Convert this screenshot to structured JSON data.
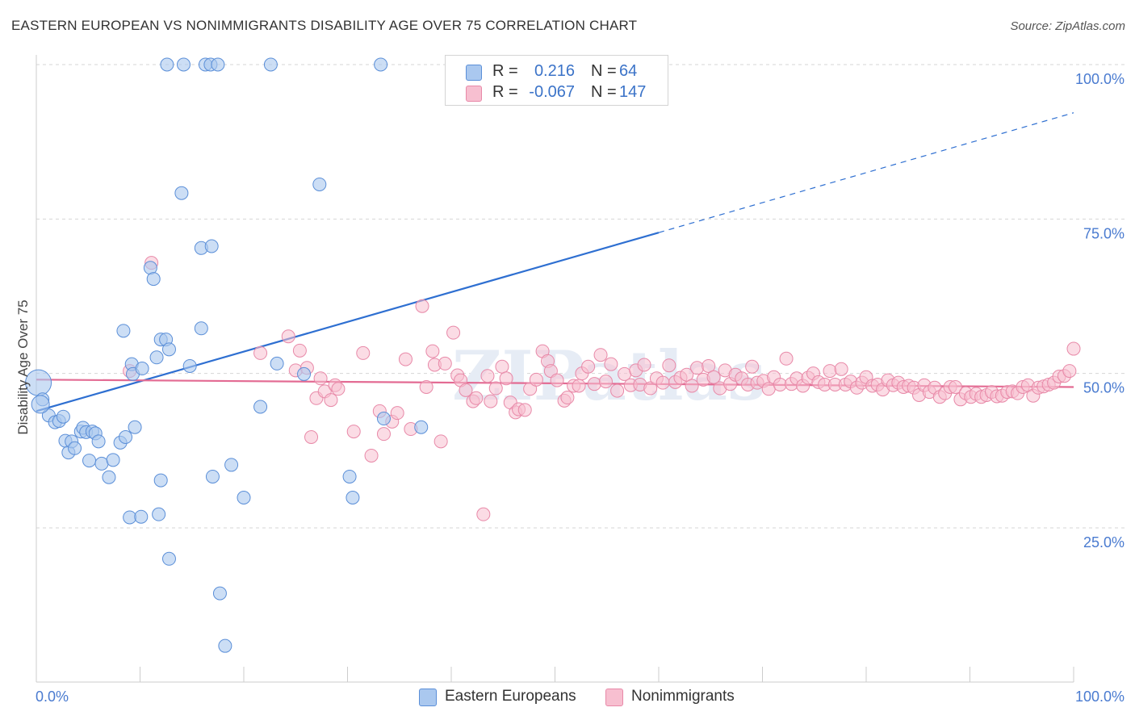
{
  "title": "EASTERN EUROPEAN VS NONIMMIGRANTS DISABILITY AGE OVER 75 CORRELATION CHART",
  "source": "Source: ZipAtlas.com",
  "watermark": "ZIPatlas",
  "legend": {
    "rows": [
      {
        "r_label": "R =",
        "r_value": "0.216",
        "n_label": "N =",
        "n_value": "64"
      },
      {
        "r_label": "R =",
        "r_value": "-0.067",
        "n_label": "N =",
        "n_value": "147"
      }
    ]
  },
  "bottom_legend": [
    {
      "label": "Eastern Europeans"
    },
    {
      "label": "Nonimmigrants"
    }
  ],
  "colors": {
    "blue_fill": "#aac8ef",
    "blue_stroke": "#5b8fd8",
    "blue_line": "#2e6fd1",
    "pink_fill": "#f7bfd0",
    "pink_stroke": "#e889a8",
    "pink_line": "#e36b93",
    "grid": "#d6d6d6",
    "tick_label": "#4a7bd0"
  },
  "chart_data": {
    "type": "scatter",
    "title": "EASTERN EUROPEAN VS NONIMMIGRANTS DISABILITY AGE OVER 75 CORRELATION CHART",
    "xlabel": "",
    "ylabel": "Disability Age Over 75",
    "xlim": [
      0,
      100
    ],
    "ylim": [
      0,
      100
    ],
    "x_tick_labels": [
      "0.0%",
      "100.0%"
    ],
    "y_ticks": [
      25,
      50,
      75,
      100
    ],
    "y_tick_labels": [
      "25.0%",
      "50.0%",
      "75.0%",
      "100.0%"
    ],
    "series": [
      {
        "name": "Eastern Europeans",
        "color": "blue",
        "trend": {
          "x0": 0,
          "y0": 43.9,
          "x1": 60,
          "y1": 72.8,
          "x_extend": 100,
          "y_extend": 92.2
        },
        "points": [
          [
            0.2,
            48.5
          ],
          [
            0.6,
            45.8
          ],
          [
            1.2,
            43.2
          ],
          [
            1.8,
            42.1
          ],
          [
            2.2,
            42.3
          ],
          [
            2.6,
            43.0
          ],
          [
            2.8,
            39.1
          ],
          [
            3.1,
            37.2
          ],
          [
            3.4,
            39.0
          ],
          [
            3.7,
            37.9
          ],
          [
            4.3,
            40.6
          ],
          [
            4.5,
            41.2
          ],
          [
            4.8,
            40.5
          ],
          [
            5.1,
            35.9
          ],
          [
            5.4,
            40.6
          ],
          [
            5.7,
            40.3
          ],
          [
            6.0,
            39.0
          ],
          [
            6.3,
            35.4
          ],
          [
            7.0,
            33.2
          ],
          [
            7.4,
            36.0
          ],
          [
            8.1,
            38.8
          ],
          [
            8.4,
            56.9
          ],
          [
            8.6,
            39.7
          ],
          [
            9.2,
            51.5
          ],
          [
            9.3,
            49.9
          ],
          [
            9.0,
            26.7
          ],
          [
            9.5,
            41.3
          ],
          [
            10.1,
            26.8
          ],
          [
            10.2,
            50.8
          ],
          [
            11.0,
            67.1
          ],
          [
            11.3,
            65.3
          ],
          [
            11.6,
            52.6
          ],
          [
            11.8,
            27.2
          ],
          [
            12.0,
            32.7
          ],
          [
            12.0,
            55.5
          ],
          [
            12.5,
            55.5
          ],
          [
            12.8,
            53.9
          ],
          [
            12.6,
            100
          ],
          [
            12.8,
            20.0
          ],
          [
            14.0,
            79.2
          ],
          [
            14.2,
            100
          ],
          [
            14.8,
            51.2
          ],
          [
            15.9,
            70.3
          ],
          [
            15.9,
            57.3
          ],
          [
            16.3,
            100
          ],
          [
            16.8,
            100
          ],
          [
            16.9,
            70.6
          ],
          [
            17.0,
            33.3
          ],
          [
            17.5,
            100
          ],
          [
            17.7,
            14.4
          ],
          [
            18.2,
            5.9
          ],
          [
            18.8,
            35.2
          ],
          [
            20.0,
            29.9
          ],
          [
            21.6,
            44.6
          ],
          [
            22.6,
            100
          ],
          [
            23.2,
            51.6
          ],
          [
            25.8,
            49.9
          ],
          [
            27.3,
            80.6
          ],
          [
            30.2,
            33.3
          ],
          [
            30.5,
            29.9
          ],
          [
            33.2,
            100
          ],
          [
            33.5,
            42.7
          ],
          [
            37.1,
            41.3
          ],
          [
            0.4,
            45.0
          ]
        ]
      },
      {
        "name": "Nonimmigrants",
        "color": "pink",
        "trend": {
          "x0": 0,
          "y0": 49.0,
          "x1": 100,
          "y1": 47.8
        },
        "points": [
          [
            9.0,
            50.4
          ],
          [
            11.1,
            67.9
          ],
          [
            21.6,
            53.3
          ],
          [
            24.3,
            56.0
          ],
          [
            25.0,
            50.5
          ],
          [
            25.4,
            53.7
          ],
          [
            26.1,
            50.9
          ],
          [
            26.5,
            39.7
          ],
          [
            27.0,
            46.0
          ],
          [
            27.4,
            49.2
          ],
          [
            27.8,
            47.1
          ],
          [
            28.4,
            45.7
          ],
          [
            28.8,
            48.1
          ],
          [
            29.1,
            47.5
          ],
          [
            30.6,
            40.6
          ],
          [
            31.5,
            53.3
          ],
          [
            32.3,
            36.7
          ],
          [
            33.1,
            43.9
          ],
          [
            33.5,
            40.2
          ],
          [
            34.3,
            42.2
          ],
          [
            34.8,
            43.6
          ],
          [
            35.6,
            52.3
          ],
          [
            36.1,
            41.0
          ],
          [
            37.2,
            60.9
          ],
          [
            37.6,
            47.8
          ],
          [
            38.2,
            53.6
          ],
          [
            38.4,
            51.4
          ],
          [
            39.0,
            39.0
          ],
          [
            39.4,
            51.6
          ],
          [
            40.2,
            56.6
          ],
          [
            40.6,
            49.7
          ],
          [
            40.9,
            48.9
          ],
          [
            41.4,
            47.3
          ],
          [
            42.1,
            45.5
          ],
          [
            42.4,
            46.0
          ],
          [
            43.1,
            27.2
          ],
          [
            43.5,
            49.6
          ],
          [
            43.8,
            45.5
          ],
          [
            44.3,
            47.6
          ],
          [
            44.9,
            51.1
          ],
          [
            45.3,
            49.2
          ],
          [
            45.7,
            45.3
          ],
          [
            46.2,
            43.7
          ],
          [
            46.5,
            44.2
          ],
          [
            47.1,
            44.1
          ],
          [
            47.6,
            47.5
          ],
          [
            48.2,
            49.0
          ],
          [
            48.8,
            53.6
          ],
          [
            49.3,
            52.0
          ],
          [
            49.6,
            50.4
          ],
          [
            50.2,
            48.9
          ],
          [
            50.9,
            45.6
          ],
          [
            51.2,
            46.1
          ],
          [
            51.8,
            48.0
          ],
          [
            52.3,
            48.0
          ],
          [
            52.6,
            50.0
          ],
          [
            53.2,
            51.1
          ],
          [
            53.8,
            48.3
          ],
          [
            54.4,
            53.0
          ],
          [
            54.9,
            48.7
          ],
          [
            55.4,
            51.5
          ],
          [
            56.0,
            47.2
          ],
          [
            56.7,
            49.9
          ],
          [
            57.3,
            48.1
          ],
          [
            57.8,
            50.5
          ],
          [
            58.2,
            48.2
          ],
          [
            58.6,
            51.4
          ],
          [
            59.2,
            47.6
          ],
          [
            59.8,
            49.2
          ],
          [
            60.4,
            48.5
          ],
          [
            61.0,
            51.3
          ],
          [
            61.6,
            48.6
          ],
          [
            62.1,
            49.3
          ],
          [
            62.7,
            49.8
          ],
          [
            63.2,
            48.0
          ],
          [
            63.7,
            50.9
          ],
          [
            64.3,
            49.0
          ],
          [
            64.8,
            51.2
          ],
          [
            65.3,
            49.4
          ],
          [
            65.9,
            47.6
          ],
          [
            66.4,
            50.5
          ],
          [
            66.9,
            48.3
          ],
          [
            67.4,
            49.8
          ],
          [
            68.0,
            49.2
          ],
          [
            68.6,
            48.2
          ],
          [
            69.0,
            51.1
          ],
          [
            69.5,
            48.5
          ],
          [
            70.1,
            48.8
          ],
          [
            70.6,
            47.5
          ],
          [
            71.1,
            49.4
          ],
          [
            71.7,
            48.2
          ],
          [
            72.3,
            52.4
          ],
          [
            72.8,
            48.3
          ],
          [
            73.3,
            49.2
          ],
          [
            73.9,
            48.0
          ],
          [
            74.4,
            49.3
          ],
          [
            74.9,
            50.0
          ],
          [
            75.4,
            48.6
          ],
          [
            76.0,
            48.2
          ],
          [
            76.5,
            50.4
          ],
          [
            77.0,
            48.2
          ],
          [
            77.6,
            50.7
          ],
          [
            78.0,
            48.2
          ],
          [
            78.5,
            48.7
          ],
          [
            79.1,
            47.7
          ],
          [
            79.6,
            48.5
          ],
          [
            80.0,
            49.4
          ],
          [
            80.6,
            48.0
          ],
          [
            81.1,
            48.2
          ],
          [
            81.6,
            47.4
          ],
          [
            82.1,
            48.9
          ],
          [
            82.6,
            48.1
          ],
          [
            83.1,
            48.5
          ],
          [
            83.6,
            47.8
          ],
          [
            84.1,
            48.0
          ],
          [
            84.6,
            47.7
          ],
          [
            85.1,
            46.5
          ],
          [
            85.6,
            48.1
          ],
          [
            86.1,
            47.0
          ],
          [
            86.6,
            47.7
          ],
          [
            87.1,
            46.2
          ],
          [
            87.6,
            46.8
          ],
          [
            88.1,
            47.8
          ],
          [
            88.6,
            47.8
          ],
          [
            89.1,
            45.8
          ],
          [
            89.6,
            46.8
          ],
          [
            90.1,
            46.2
          ],
          [
            90.6,
            46.7
          ],
          [
            91.1,
            46.2
          ],
          [
            91.6,
            46.5
          ],
          [
            92.1,
            47.0
          ],
          [
            92.6,
            46.3
          ],
          [
            93.1,
            46.4
          ],
          [
            93.6,
            47.0
          ],
          [
            94.1,
            47.1
          ],
          [
            94.6,
            46.8
          ],
          [
            95.1,
            47.8
          ],
          [
            95.6,
            48.1
          ],
          [
            96.1,
            46.4
          ],
          [
            96.6,
            47.7
          ],
          [
            97.1,
            47.9
          ],
          [
            97.6,
            48.2
          ],
          [
            98.1,
            48.5
          ],
          [
            98.6,
            49.5
          ],
          [
            99.1,
            49.6
          ],
          [
            99.6,
            50.4
          ],
          [
            100.0,
            54.0
          ]
        ]
      }
    ]
  }
}
